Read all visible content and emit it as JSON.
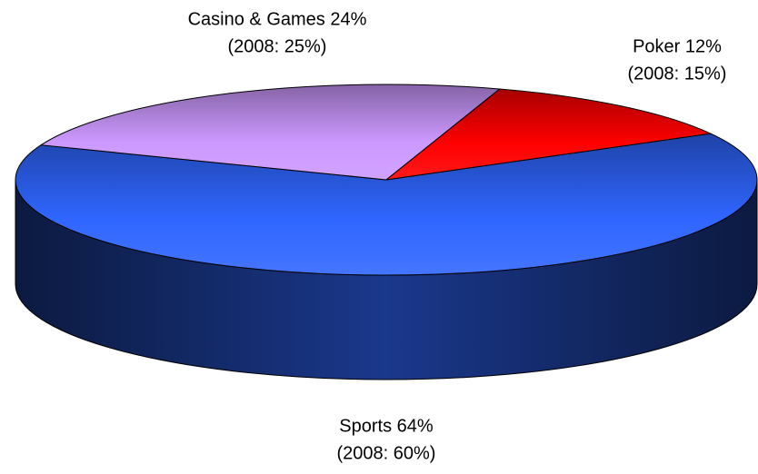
{
  "chart_data": {
    "type": "pie3d",
    "values": [
      64,
      24,
      12
    ],
    "value_labels": [
      "Sports 64%",
      "Casino & Games 24%",
      "Poker 12%"
    ],
    "prior_labels": [
      "(2008: 60%)",
      "(2008: 25%)",
      "(2008: 15%)"
    ],
    "colors": [
      "#2f66ff",
      "#cc99ff",
      "#ff0000"
    ]
  }
}
